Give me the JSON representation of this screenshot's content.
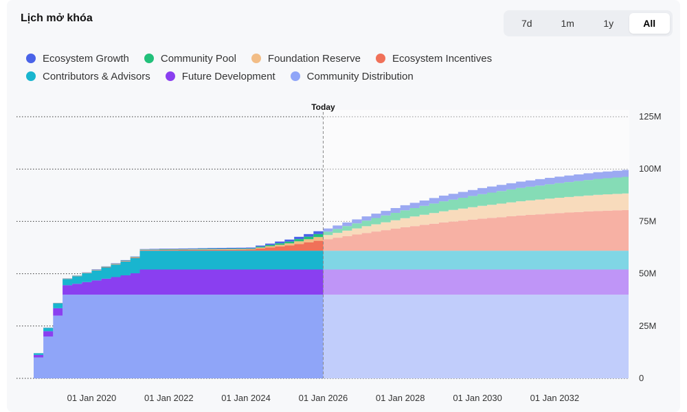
{
  "title": "Lịch mở khóa",
  "range_buttons": [
    {
      "label": "7d",
      "active": false
    },
    {
      "label": "1m",
      "active": false
    },
    {
      "label": "1y",
      "active": false
    },
    {
      "label": "All",
      "active": true
    }
  ],
  "legend": [
    {
      "name": "Ecosystem Growth",
      "color": "#4a63e8"
    },
    {
      "name": "Community Pool",
      "color": "#22c07a"
    },
    {
      "name": "Foundation Reserve",
      "color": "#f2bd86"
    },
    {
      "name": "Ecosystem Incentives",
      "color": "#f07159"
    },
    {
      "name": "Contributors & Advisors",
      "color": "#19b5cf"
    },
    {
      "name": "Future Development",
      "color": "#8a3ff0"
    },
    {
      "name": "Community Distribution",
      "color": "#8fa5f8"
    }
  ],
  "chart_data": {
    "type": "area",
    "stacked": true,
    "step": true,
    "x_start": "2018-04-01",
    "x_end": "2033-12-01",
    "today": "2026-01-01",
    "today_label": "Today",
    "ylim": [
      0,
      125
    ],
    "y_ticks": [
      "0",
      "25M",
      "50M",
      "75M",
      "100M",
      "125M"
    ],
    "y_tick_values": [
      0,
      25,
      50,
      75,
      100,
      125
    ],
    "x_ticks": [
      "01 Jan 2020",
      "01 Jan 2022",
      "01 Jan 2024",
      "01 Jan 2026",
      "01 Jan 2028",
      "01 Jan 2030",
      "01 Jan 2032"
    ],
    "x_tick_dates": [
      "2020-01-01",
      "2022-01-01",
      "2024-01-01",
      "2026-01-01",
      "2028-01-01",
      "2030-01-01",
      "2032-01-01"
    ],
    "unit": "M",
    "series_order_bottom_to_top": [
      "Community Distribution",
      "Future Development",
      "Contributors & Advisors",
      "Ecosystem Incentives",
      "Foundation Reserve",
      "Community Pool",
      "Ecosystem Growth"
    ],
    "series": [
      {
        "name": "Community Distribution",
        "points": [
          [
            "2018-04-01",
            0
          ],
          [
            "2018-05-01",
            10
          ],
          [
            "2018-08-01",
            20
          ],
          [
            "2018-11-01",
            30
          ],
          [
            "2019-02-01",
            40
          ],
          [
            "2033-12-01",
            40
          ]
        ]
      },
      {
        "name": "Future Development",
        "points": [
          [
            "2018-04-01",
            0
          ],
          [
            "2018-05-01",
            1.2
          ],
          [
            "2018-08-01",
            2.5
          ],
          [
            "2018-11-01",
            3.5
          ],
          [
            "2019-02-01",
            4.5
          ],
          [
            "2019-05-01",
            5.2
          ],
          [
            "2019-08-01",
            6
          ],
          [
            "2019-11-01",
            6.8
          ],
          [
            "2020-02-01",
            7.6
          ],
          [
            "2020-05-01",
            8.4
          ],
          [
            "2020-08-01",
            9.2
          ],
          [
            "2020-11-01",
            10.2
          ],
          [
            "2021-02-01",
            12
          ],
          [
            "2033-12-01",
            12
          ]
        ]
      },
      {
        "name": "Contributors & Advisors",
        "points": [
          [
            "2018-04-01",
            0
          ],
          [
            "2018-05-01",
            0.8
          ],
          [
            "2018-08-01",
            1.6
          ],
          [
            "2018-11-01",
            2.4
          ],
          [
            "2019-02-01",
            3
          ],
          [
            "2019-05-01",
            3.6
          ],
          [
            "2019-08-01",
            4.2
          ],
          [
            "2019-11-01",
            4.8
          ],
          [
            "2020-02-01",
            5.4
          ],
          [
            "2020-05-01",
            6
          ],
          [
            "2020-08-01",
            6.6
          ],
          [
            "2020-11-01",
            7.3
          ],
          [
            "2021-02-01",
            9
          ],
          [
            "2033-12-01",
            9
          ]
        ]
      },
      {
        "name": "Ecosystem Incentives",
        "points": [
          [
            "2018-04-01",
            0
          ],
          [
            "2024-01-01",
            0.5
          ],
          [
            "2025-01-01",
            2.5
          ],
          [
            "2026-01-01",
            5.5
          ],
          [
            "2027-01-01",
            8.5
          ],
          [
            "2028-01-01",
            11.2
          ],
          [
            "2029-01-01",
            13.5
          ],
          [
            "2030-01-01",
            15.3
          ],
          [
            "2031-01-01",
            16.8
          ],
          [
            "2032-01-01",
            18
          ],
          [
            "2033-01-01",
            19
          ],
          [
            "2033-12-01",
            19.5
          ]
        ]
      },
      {
        "name": "Foundation Reserve",
        "points": [
          [
            "2018-04-01",
            0
          ],
          [
            "2024-01-01",
            0.3
          ],
          [
            "2025-01-01",
            1
          ],
          [
            "2026-01-01",
            2
          ],
          [
            "2027-01-01",
            3.2
          ],
          [
            "2028-01-01",
            4.3
          ],
          [
            "2029-01-01",
            5.3
          ],
          [
            "2030-01-01",
            6.1
          ],
          [
            "2031-01-01",
            6.8
          ],
          [
            "2032-01-01",
            7.3
          ],
          [
            "2033-01-01",
            7.7
          ],
          [
            "2033-12-01",
            8
          ]
        ]
      },
      {
        "name": "Community Pool",
        "points": [
          [
            "2018-04-01",
            0
          ],
          [
            "2024-01-01",
            0.3
          ],
          [
            "2025-01-01",
            0.9
          ],
          [
            "2026-01-01",
            1.6
          ],
          [
            "2027-01-01",
            2.7
          ],
          [
            "2028-01-01",
            3.8
          ],
          [
            "2029-01-01",
            4.8
          ],
          [
            "2030-01-01",
            5.6
          ],
          [
            "2031-01-01",
            6.4
          ],
          [
            "2032-01-01",
            7
          ],
          [
            "2033-01-01",
            7.6
          ],
          [
            "2033-12-01",
            8
          ]
        ]
      },
      {
        "name": "Ecosystem Growth",
        "points": [
          [
            "2018-04-01",
            0
          ],
          [
            "2024-01-01",
            0.4
          ],
          [
            "2025-01-01",
            0.9
          ],
          [
            "2026-01-01",
            1.5
          ],
          [
            "2027-01-01",
            2
          ],
          [
            "2028-01-01",
            2.4
          ],
          [
            "2029-01-01",
            2.7
          ],
          [
            "2030-01-01",
            2.9
          ],
          [
            "2031-01-01",
            3
          ],
          [
            "2032-01-01",
            3.1
          ],
          [
            "2033-01-01",
            3.2
          ],
          [
            "2033-12-01",
            3.3
          ]
        ]
      }
    ]
  }
}
